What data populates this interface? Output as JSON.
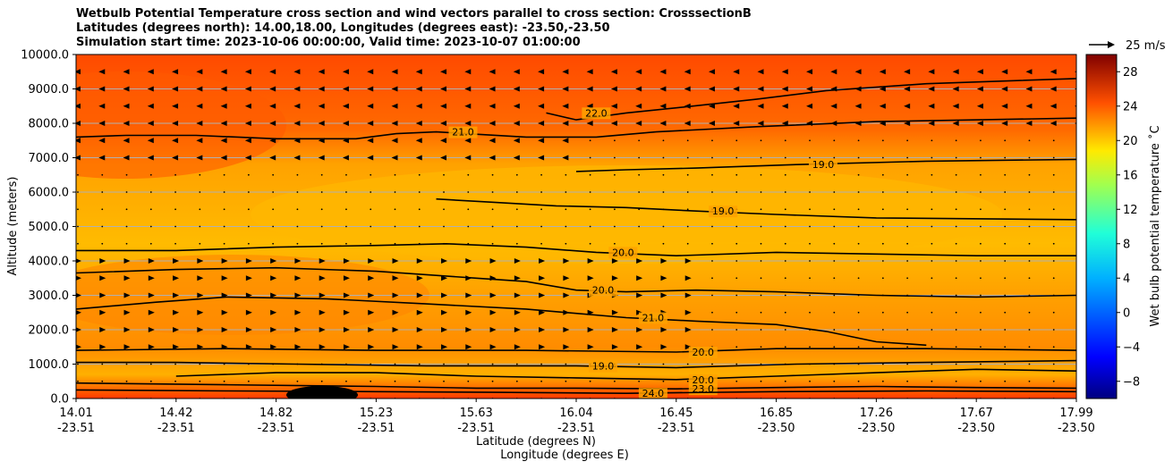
{
  "chart_data": {
    "type": "heatmap",
    "title_lines": [
      "Wetbulb Potential Temperature cross section and wind vectors parallel to cross section: CrosssectionB",
      "Latitudes (degrees north): 14.00,18.00, Longitudes (degrees east): -23.50,-23.50",
      "Simulation start time: 2023-10-06 00:00:00, Valid time: 2023-10-07 01:00:00"
    ],
    "ylabel": "Altitude (meters)",
    "xlabel_lines": [
      "Latitude (degrees N)",
      "Longitude (degrees E)"
    ],
    "ylim": [
      0,
      10000
    ],
    "yticks": [
      0,
      1000,
      2000,
      3000,
      4000,
      5000,
      6000,
      7000,
      8000,
      9000,
      10000
    ],
    "ytick_labels": [
      "0.0",
      "1000.0",
      "2000.0",
      "3000.0",
      "4000.0",
      "5000.0",
      "6000.0",
      "7000.0",
      "8000.0",
      "9000.0",
      "10000.0"
    ],
    "x_positions": [
      0,
      0.1,
      0.2,
      0.3,
      0.4,
      0.5,
      0.6,
      0.7,
      0.8,
      0.9,
      1.0
    ],
    "xtick_lat": [
      "14.01",
      "14.42",
      "14.82",
      "15.23",
      "15.63",
      "16.04",
      "16.45",
      "16.85",
      "17.26",
      "17.67",
      "17.99"
    ],
    "xtick_lon": [
      "-23.51",
      "-23.51",
      "-23.51",
      "-23.51",
      "-23.51",
      "-23.51",
      "-23.51",
      "-23.50",
      "-23.50",
      "-23.50",
      "-23.50"
    ],
    "colorbar": {
      "label": "Wet bulb potential temperature ˚C",
      "range": [
        -10,
        30
      ],
      "ticks": [
        -8,
        -4,
        0,
        4,
        8,
        12,
        16,
        20,
        24,
        28
      ],
      "tick_labels": [
        "−8",
        "−4",
        "0",
        "4",
        "8",
        "12",
        "16",
        "20",
        "24",
        "28"
      ]
    },
    "quiver_key": "25 m/s",
    "contours": [
      {
        "level": 22.0,
        "label": "22.0",
        "points": [
          [
            0.47,
            8300
          ],
          [
            0.5,
            8100
          ],
          [
            0.55,
            8300
          ],
          [
            0.6,
            8450
          ],
          [
            0.68,
            8700
          ],
          [
            0.75,
            8950
          ],
          [
            0.85,
            9150
          ],
          [
            1.0,
            9300
          ]
        ]
      },
      {
        "level": 21.0,
        "label": "21.0",
        "points": [
          [
            0,
            7600
          ],
          [
            0.05,
            7650
          ],
          [
            0.12,
            7650
          ],
          [
            0.2,
            7550
          ],
          [
            0.28,
            7550
          ],
          [
            0.32,
            7700
          ],
          [
            0.36,
            7750
          ],
          [
            0.45,
            7600
          ],
          [
            0.52,
            7600
          ],
          [
            0.58,
            7750
          ],
          [
            0.68,
            7900
          ],
          [
            0.8,
            8050
          ],
          [
            1.0,
            8150
          ]
        ]
      },
      {
        "level": 19.0,
        "label": "19.0",
        "points": [
          [
            0.5,
            6600
          ],
          [
            0.55,
            6650
          ],
          [
            0.62,
            6700
          ],
          [
            0.72,
            6800
          ],
          [
            0.85,
            6900
          ],
          [
            1.0,
            6950
          ]
        ]
      },
      {
        "level": 19.0,
        "label": "19.0",
        "points": [
          [
            0.36,
            5800
          ],
          [
            0.42,
            5700
          ],
          [
            0.48,
            5600
          ],
          [
            0.55,
            5550
          ],
          [
            0.62,
            5450
          ],
          [
            0.7,
            5350
          ],
          [
            0.8,
            5250
          ],
          [
            1.0,
            5200
          ]
        ]
      },
      {
        "level": 20.0,
        "label": "20.0",
        "points": [
          [
            0,
            4300
          ],
          [
            0.1,
            4300
          ],
          [
            0.2,
            4400
          ],
          [
            0.3,
            4450
          ],
          [
            0.37,
            4500
          ],
          [
            0.45,
            4400
          ],
          [
            0.52,
            4250
          ],
          [
            0.6,
            4150
          ],
          [
            0.7,
            4250
          ],
          [
            0.8,
            4200
          ],
          [
            0.9,
            4150
          ],
          [
            1.0,
            4150
          ]
        ]
      },
      {
        "level": 20.0,
        "label": "20.0",
        "points": [
          [
            0,
            3650
          ],
          [
            0.1,
            3750
          ],
          [
            0.2,
            3800
          ],
          [
            0.3,
            3700
          ],
          [
            0.4,
            3500
          ],
          [
            0.45,
            3400
          ],
          [
            0.5,
            3150
          ],
          [
            0.55,
            3100
          ],
          [
            0.62,
            3150
          ],
          [
            0.7,
            3100
          ],
          [
            0.8,
            3000
          ],
          [
            0.9,
            2950
          ],
          [
            1.0,
            3000
          ]
        ]
      },
      {
        "level": 21.0,
        "label": "21.0",
        "points": [
          [
            0,
            2600
          ],
          [
            0.08,
            2800
          ],
          [
            0.15,
            2950
          ],
          [
            0.25,
            2900
          ],
          [
            0.35,
            2750
          ],
          [
            0.45,
            2600
          ],
          [
            0.55,
            2350
          ],
          [
            0.62,
            2250
          ],
          [
            0.7,
            2150
          ],
          [
            0.75,
            1950
          ],
          [
            0.8,
            1650
          ],
          [
            0.85,
            1550
          ]
        ]
      },
      {
        "level": 20.0,
        "label": "20.0",
        "points": [
          [
            0,
            1400
          ],
          [
            0.15,
            1450
          ],
          [
            0.3,
            1400
          ],
          [
            0.45,
            1400
          ],
          [
            0.6,
            1350
          ],
          [
            0.7,
            1450
          ],
          [
            0.85,
            1450
          ],
          [
            1.0,
            1400
          ]
        ]
      },
      {
        "level": 19.0,
        "label": "19.0",
        "points": [
          [
            0,
            1050
          ],
          [
            0.1,
            1050
          ],
          [
            0.22,
            1000
          ],
          [
            0.35,
            950
          ],
          [
            0.5,
            950
          ],
          [
            0.6,
            900
          ],
          [
            0.72,
            1000
          ],
          [
            0.85,
            1050
          ],
          [
            1.0,
            1100
          ]
        ]
      },
      {
        "level": 20.0,
        "label": "20.0",
        "points": [
          [
            0.1,
            650
          ],
          [
            0.2,
            750
          ],
          [
            0.3,
            750
          ],
          [
            0.4,
            650
          ],
          [
            0.5,
            600
          ],
          [
            0.6,
            550
          ],
          [
            0.7,
            650
          ],
          [
            0.8,
            750
          ],
          [
            0.9,
            850
          ],
          [
            1.0,
            800
          ]
        ]
      },
      {
        "level": 23.0,
        "label": "23.0",
        "points": [
          [
            0,
            450
          ],
          [
            0.15,
            400
          ],
          [
            0.3,
            350
          ],
          [
            0.4,
            300
          ],
          [
            0.5,
            300
          ],
          [
            0.6,
            280
          ],
          [
            0.7,
            320
          ],
          [
            0.8,
            350
          ],
          [
            0.9,
            320
          ],
          [
            1.0,
            300
          ]
        ]
      },
      {
        "level": 24.0,
        "label": "24.0",
        "points": [
          [
            0,
            250
          ],
          [
            0.15,
            220
          ],
          [
            0.3,
            200
          ],
          [
            0.42,
            180
          ],
          [
            0.55,
            150
          ],
          [
            0.7,
            200
          ],
          [
            0.85,
            220
          ],
          [
            1.0,
            200
          ]
        ]
      }
    ]
  }
}
